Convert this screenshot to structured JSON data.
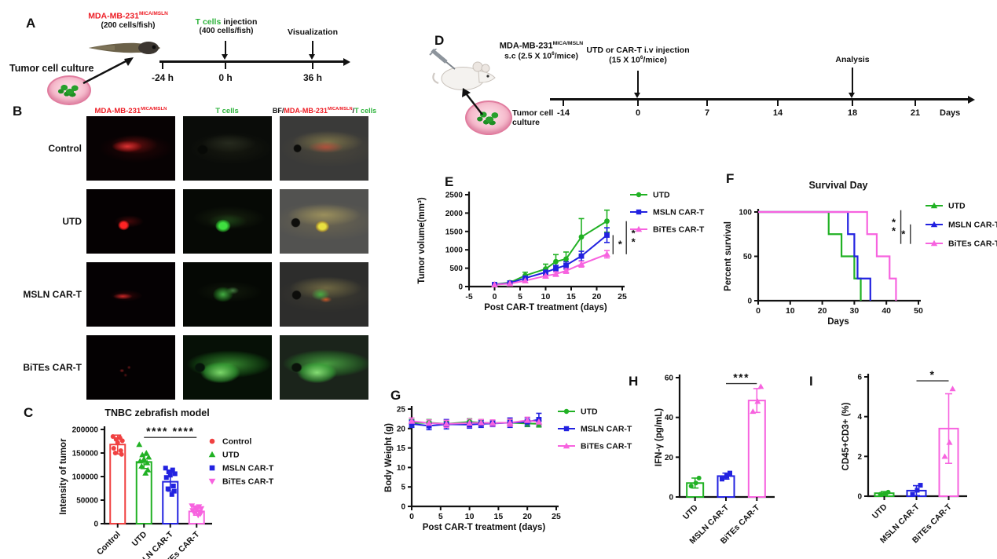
{
  "colors": {
    "control": "#F04141",
    "utd": "#21B124",
    "msln": "#2222E0",
    "bites": "#F763DF",
    "red_label": "#ED1C24",
    "green_label": "#2EB33C"
  },
  "panel_a": {
    "letter": "A",
    "culture": "Tumor cell culture",
    "cell_line": "MDA-MB-231",
    "cell_line_sup": "MICA/MSLN",
    "cell_dose": "(200 cells/fish)",
    "tcell": "T cells",
    "tcell_rest": " injection",
    "tcell_dose": "(400 cells/fish)",
    "visualization": "Visualization",
    "ticks": [
      "-24 h",
      "0 h",
      "36 h"
    ]
  },
  "panel_b": {
    "letter": "B",
    "header_col1": "MDA-MB-231",
    "header_col1_sup": "MICA/MSLN",
    "header_col2": "T cells",
    "header_col3_bf": "BF/",
    "header_col3_red": "MDA-MB-231",
    "header_col3_sup": "MICA/MSLN",
    "header_col3_sep": "/",
    "header_col3_green": "T cells",
    "rows": [
      "Control",
      "UTD",
      "MSLN CAR-T",
      "BiTEs CAR-T"
    ]
  },
  "panel_d": {
    "letter": "D",
    "cell_line": "MDA-MB-231",
    "cell_line_sup": "MICA/MSLN",
    "cell_dose_pre": "s.c (2.5 X 10",
    "cell_dose_sup": "6",
    "cell_dose_post": "/mice)",
    "injection": "UTD or CAR-T i.v injection",
    "inj_dose_pre": "(15 X 10",
    "inj_dose_sup": "6",
    "inj_dose_post": "/mice)",
    "analysis": "Analysis",
    "ticks": [
      "-14",
      "0",
      "7",
      "14",
      "18",
      "21"
    ],
    "days": "Days",
    "culture": "Tumor cell culture"
  },
  "panel_letters": {
    "c": "C",
    "e": "E",
    "f": "F",
    "g": "G",
    "h": "H",
    "i": "I"
  },
  "chart_data": [
    {
      "id": "C",
      "type": "bar",
      "title": "TNBC zebrafish model",
      "ylabel": "Intensity of tumor",
      "categories": [
        "Control",
        "UTD",
        "MSLN CAR-T",
        "BiTEs CAR-T"
      ],
      "values": [
        168000,
        131000,
        89000,
        26000
      ],
      "errors": [
        20000,
        14000,
        20000,
        8000
      ],
      "colors": [
        "#F04141",
        "#21B124",
        "#2222E0",
        "#F763DF"
      ],
      "markers": [
        "circle",
        "triangle",
        "square",
        "triangle-down"
      ],
      "points": [
        [
          185000,
          182000,
          179000,
          176000,
          172000,
          160000,
          155000,
          150000,
          147000
        ],
        [
          168000,
          150000,
          146000,
          141000,
          137000,
          133000,
          129000,
          122000,
          114000,
          107000
        ],
        [
          118000,
          114000,
          110000,
          106000,
          103000,
          98000,
          80000,
          74000,
          69000,
          62000
        ],
        [
          38000,
          36000,
          34000,
          32000,
          30000,
          28000,
          25000,
          23000,
          21000,
          18000
        ]
      ],
      "ylim": [
        0,
        200000
      ],
      "yticks": [
        0,
        50000,
        100000,
        150000,
        200000
      ],
      "significance": [
        {
          "x1": 1,
          "x2": 2,
          "y": 183000,
          "label": "****"
        },
        {
          "x1": 2,
          "x2": 3,
          "y": 183000,
          "label": "****"
        }
      ],
      "legend": [
        "Control",
        "UTD",
        "MSLN CAR-T",
        "BiTEs CAR-T"
      ]
    },
    {
      "id": "E",
      "type": "line",
      "xlabel": "Post CAR-T treatment (days)",
      "ylabel": "Tumor volume(mm³)",
      "x": [
        0,
        3,
        6,
        10,
        12,
        14,
        17,
        22
      ],
      "series": [
        {
          "name": "UTD",
          "color": "#21B124",
          "marker": "circle",
          "values": [
            60,
            110,
            300,
            480,
            680,
            750,
            1350,
            1780
          ],
          "errors": [
            30,
            40,
            90,
            130,
            190,
            190,
            500,
            300
          ]
        },
        {
          "name": "MSLN CAR-T",
          "color": "#2222E0",
          "marker": "square",
          "values": [
            55,
            95,
            230,
            390,
            490,
            580,
            830,
            1400
          ],
          "errors": [
            25,
            30,
            60,
            90,
            90,
            100,
            130,
            200
          ]
        },
        {
          "name": "BiTEs CAR-T",
          "color": "#F763DF",
          "marker": "triangle",
          "values": [
            50,
            80,
            160,
            290,
            340,
            430,
            610,
            880
          ],
          "errors": [
            20,
            25,
            45,
            60,
            60,
            70,
            80,
            100
          ]
        }
      ],
      "xlim": [
        -5,
        25
      ],
      "ylim": [
        0,
        2500
      ],
      "xticks": [
        -5,
        0,
        5,
        10,
        15,
        20,
        25
      ],
      "yticks": [
        0,
        500,
        1000,
        1500,
        2000,
        2500
      ],
      "significance": [
        {
          "x": 23.2,
          "y1": 1400,
          "y2": 880,
          "label": "*",
          "side": "right"
        },
        {
          "x": 25.8,
          "y1": 1780,
          "y2": 880,
          "label": "**",
          "side": "right"
        }
      ]
    },
    {
      "id": "F",
      "type": "survival",
      "title": "Survival Day",
      "xlabel": "Days",
      "ylabel": "Percent survival",
      "series": [
        {
          "name": "UTD",
          "color": "#21B124",
          "steps": [
            [
              0,
              100
            ],
            [
              22,
              100
            ],
            [
              22,
              75
            ],
            [
              26,
              75
            ],
            [
              26,
              50
            ],
            [
              30,
              50
            ],
            [
              30,
              25
            ],
            [
              32,
              25
            ],
            [
              32,
              0
            ]
          ]
        },
        {
          "name": "MSLN CAR-T",
          "color": "#2222E0",
          "steps": [
            [
              0,
              100
            ],
            [
              28,
              100
            ],
            [
              28,
              75
            ],
            [
              30,
              75
            ],
            [
              30,
              50
            ],
            [
              31,
              50
            ],
            [
              31,
              25
            ],
            [
              35,
              25
            ],
            [
              35,
              0
            ]
          ]
        },
        {
          "name": "BiTEs CAR-T",
          "color": "#F763DF",
          "steps": [
            [
              0,
              100
            ],
            [
              34,
              100
            ],
            [
              34,
              75
            ],
            [
              37,
              75
            ],
            [
              37,
              50
            ],
            [
              41,
              50
            ],
            [
              41,
              25
            ],
            [
              43,
              25
            ],
            [
              43,
              0
            ]
          ]
        }
      ],
      "xlim": [
        0,
        50
      ],
      "ylim": [
        0,
        100
      ],
      "xticks": [
        0,
        10,
        20,
        30,
        40,
        50
      ],
      "yticks": [
        0,
        50,
        100
      ],
      "significance": [
        {
          "x": 44.5,
          "y1": 102,
          "y2": 64,
          "label": "**",
          "side": "left"
        },
        {
          "x": 47.5,
          "y1": 86,
          "y2": 64,
          "label": "*",
          "side": "left"
        }
      ]
    },
    {
      "id": "G",
      "type": "line",
      "xlabel": "Post CAR-T treatment (days)",
      "ylabel": "Body Weight (g)",
      "x": [
        0,
        3,
        6,
        10,
        12,
        14,
        17,
        20,
        22
      ],
      "series": [
        {
          "name": "UTD",
          "color": "#21B124",
          "marker": "circle",
          "values": [
            21.4,
            21.5,
            21.2,
            21.7,
            21.5,
            21.4,
            21.5,
            21.3,
            21.2
          ],
          "errors": [
            0.9,
            0.8,
            0.7,
            0.8,
            0.8,
            0.7,
            0.8,
            0.8,
            0.8
          ]
        },
        {
          "name": "MSLN CAR-T",
          "color": "#2222E0",
          "marker": "square",
          "values": [
            21.2,
            20.7,
            21.1,
            21.0,
            21.2,
            21.3,
            21.5,
            21.7,
            22.3
          ],
          "errors": [
            0.9,
            1.0,
            1.2,
            0.9,
            0.9,
            0.8,
            1.2,
            1.0,
            1.6
          ]
        },
        {
          "name": "BiTEs CAR-T",
          "color": "#F763DF",
          "marker": "triangle",
          "values": [
            21.9,
            21.4,
            21.2,
            21.4,
            21.5,
            21.4,
            21.5,
            22.1,
            21.7
          ],
          "errors": [
            0.8,
            0.8,
            0.9,
            1.0,
            0.8,
            0.8,
            0.9,
            0.8,
            0.9
          ]
        }
      ],
      "xlim": [
        0,
        25
      ],
      "ylim": [
        0,
        25
      ],
      "xticks": [
        0,
        5,
        10,
        15,
        20,
        25
      ],
      "yticks": [
        0,
        5,
        10,
        15,
        20,
        25
      ],
      "significance": []
    },
    {
      "id": "H",
      "type": "bar",
      "ylabel": "IFN-γ (pg/mL)",
      "categories": [
        "UTD",
        "MSLN CAR-T",
        "BiTEs CAR-T"
      ],
      "values": [
        7,
        10.5,
        48.5
      ],
      "errors": [
        2.5,
        1.5,
        6
      ],
      "colors": [
        "#21B124",
        "#2222E0",
        "#F763DF"
      ],
      "markers": [
        "circle",
        "square",
        "triangle"
      ],
      "points": [
        [
          5.5,
          7,
          9.5
        ],
        [
          9,
          10.5,
          12
        ],
        [
          43,
          48,
          55.5
        ]
      ],
      "ylim": [
        0,
        60
      ],
      "yticks": [
        0,
        20,
        40,
        60
      ],
      "significance": [
        {
          "x1": 1,
          "x2": 2,
          "y": 57,
          "label": "***"
        }
      ]
    },
    {
      "id": "I",
      "type": "bar",
      "ylabel": "CD45+CD3+ (%)",
      "categories": [
        "UTD",
        "MSLN CAR-T",
        "BiTEs CAR-T"
      ],
      "values": [
        0.15,
        0.28,
        3.4
      ],
      "errors": [
        0.08,
        0.25,
        1.75
      ],
      "colors": [
        "#21B124",
        "#2222E0",
        "#F763DF"
      ],
      "markers": [
        "circle",
        "square",
        "triangle"
      ],
      "points": [
        [
          0.1,
          0.15,
          0.2
        ],
        [
          0.1,
          0.3,
          0.55
        ],
        [
          2.0,
          2.7,
          5.4
        ]
      ],
      "ylim": [
        0,
        6
      ],
      "yticks": [
        0,
        2,
        4,
        6
      ],
      "significance": [
        {
          "x1": 1,
          "x2": 2,
          "y": 5.8,
          "label": "*"
        }
      ]
    }
  ]
}
